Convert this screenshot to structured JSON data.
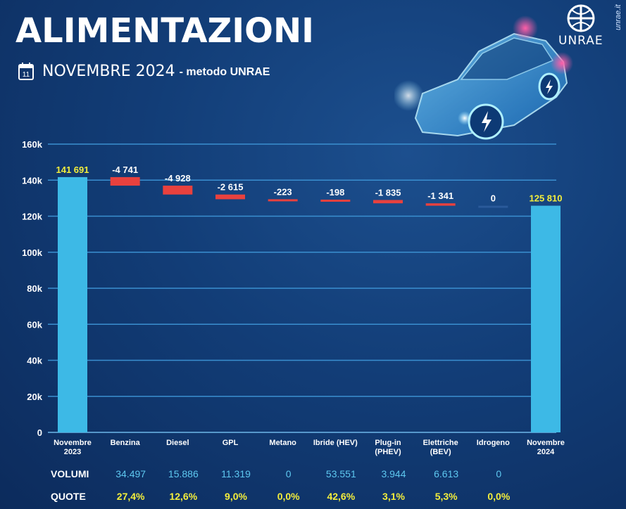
{
  "header": {
    "title": "ALIMENTAZIONI",
    "month": "NOVEMBRE 2024",
    "method": "- metodo UNRAE",
    "calendar_day": "11",
    "logo_text": "UNRAE",
    "site": "unrae.it"
  },
  "chart_data": {
    "type": "waterfall",
    "y_ticks": [
      "160k",
      "140k",
      "120k",
      "100k",
      "80k",
      "60k",
      "40k",
      "20k",
      "0"
    ],
    "ylim": [
      0,
      160000
    ],
    "grid": true,
    "categories": [
      [
        "Novembre",
        "2023"
      ],
      [
        "Benzina"
      ],
      [
        "Diesel"
      ],
      [
        "GPL"
      ],
      [
        "Metano"
      ],
      [
        "Ibride (HEV)"
      ],
      [
        "Plug-in",
        "(PHEV)"
      ],
      [
        "Elettriche",
        "(BEV)"
      ],
      [
        "Idrogeno"
      ],
      [
        "Novembre",
        "2024"
      ]
    ],
    "start_value": 141691,
    "start_label": "141 691",
    "deltas": [
      -4741,
      -4928,
      -2615,
      -223,
      -198,
      -1835,
      -1341,
      0
    ],
    "delta_labels": [
      "-4 741",
      "-4 928",
      "-2 615",
      "-223",
      "-198",
      "-1 835",
      "-1 341",
      "0"
    ],
    "end_value": 125810,
    "end_label": "125 810",
    "colors": {
      "total": "#3db9e6",
      "decrease": "#e8413e",
      "grid": "#3a8fd0",
      "total_label": "#f3ee3c"
    }
  },
  "table": {
    "volumi_label": "VOLUMI",
    "quote_label": "QUOTE",
    "volumi": [
      "34.497",
      "15.886",
      "11.319",
      "0",
      "53.551",
      "3.944",
      "6.613",
      "0"
    ],
    "quote": [
      "27,4%",
      "12,6%",
      "9,0%",
      "0,0%",
      "42,6%",
      "3,1%",
      "5,3%",
      "0,0%"
    ]
  }
}
